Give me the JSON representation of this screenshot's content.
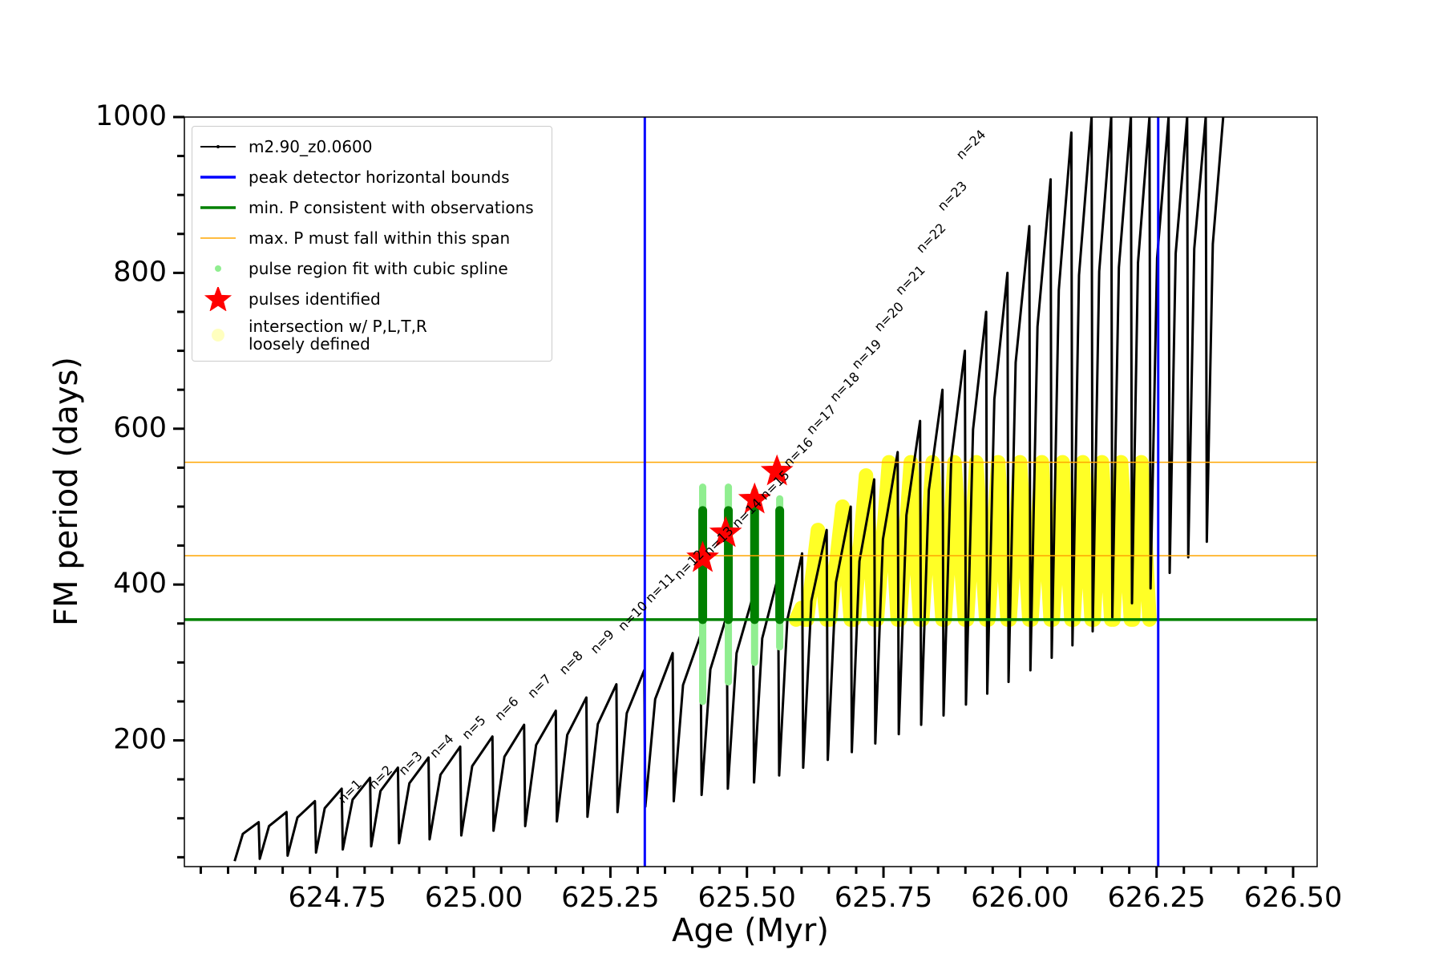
{
  "chart_data": {
    "type": "line",
    "xlabel": "Age (Myr)",
    "ylabel": "FM period (days)",
    "xlim": [
      624.47,
      626.544
    ],
    "ylim": [
      38,
      1000
    ],
    "xticks": [
      {
        "value": 624.75,
        "label": "624.75"
      },
      {
        "value": 625.0,
        "label": "625.00"
      },
      {
        "value": 625.25,
        "label": "625.25"
      },
      {
        "value": 625.5,
        "label": "625.50"
      },
      {
        "value": 625.75,
        "label": "625.75"
      },
      {
        "value": 626.0,
        "label": "626.00"
      },
      {
        "value": 626.25,
        "label": "626.25"
      },
      {
        "value": 626.5,
        "label": "626.50"
      }
    ],
    "xminorticks": [
      624.5,
      624.55,
      624.6,
      624.65,
      624.7,
      624.8,
      624.85,
      624.9,
      624.95,
      625.05,
      625.1,
      625.15,
      625.2,
      625.3,
      625.35,
      625.4,
      625.45,
      625.55,
      625.6,
      625.65,
      625.7,
      625.8,
      625.85,
      625.9,
      625.95,
      626.05,
      626.1,
      626.15,
      626.2,
      626.3,
      626.35,
      626.4,
      626.45
    ],
    "yticks": [
      200,
      400,
      600,
      800,
      1000
    ],
    "yminorticks": [
      50,
      100,
      150,
      250,
      300,
      350,
      450,
      500,
      550,
      650,
      700,
      750,
      850,
      900,
      950
    ],
    "series": [
      {
        "name": "m2.90_z0.0600",
        "color": "#000000",
        "x": [
          624.562,
          624.577,
          624.606,
          624.608,
          624.625,
          624.657,
          624.659,
          624.677,
          624.709,
          624.711,
          624.727,
          624.758,
          624.76,
          624.778,
          624.81,
          624.812,
          624.829,
          624.861,
          624.863,
          624.882,
          624.917,
          624.919,
          624.939,
          624.975,
          624.977,
          624.997,
          625.034,
          625.036,
          625.056,
          625.092,
          625.094,
          625.114,
          625.15,
          625.152,
          625.171,
          625.206,
          625.208,
          625.227,
          625.261,
          625.263,
          625.28,
          625.312,
          625.314,
          625.332,
          625.364,
          625.366,
          625.383,
          625.415,
          625.417,
          625.433,
          625.463,
          625.465,
          625.481,
          625.511,
          625.513,
          625.528,
          625.557,
          625.559,
          625.574,
          625.601,
          625.603,
          625.618,
          625.646,
          625.648,
          625.663,
          625.69,
          625.692,
          625.706,
          625.733,
          625.735,
          625.749,
          625.776,
          625.778,
          625.792,
          625.817,
          625.819,
          625.833,
          625.858,
          625.86,
          625.874,
          625.899,
          625.901,
          625.914,
          625.938,
          625.94,
          625.953,
          625.977,
          625.979,
          625.992,
          626.017,
          626.019,
          626.032,
          626.056,
          626.058,
          626.071,
          626.094,
          626.096,
          626.108,
          626.131,
          626.133,
          626.145,
          626.167,
          626.169,
          626.181,
          626.203,
          626.205,
          626.216,
          626.237,
          626.239,
          626.251,
          626.272,
          626.274,
          626.285,
          626.306,
          626.308,
          626.319,
          626.34,
          626.342,
          626.353,
          626.372
        ],
        "values": [
          45,
          80,
          95,
          48,
          90,
          108,
          52,
          101,
          122,
          56,
          113,
          138,
          60,
          124,
          152,
          64,
          135,
          165,
          68,
          145,
          178,
          73,
          156,
          192,
          78,
          167,
          205,
          84,
          179,
          220,
          90,
          194,
          238,
          96,
          207,
          255,
          102,
          221,
          272,
          108,
          235,
          290,
          115,
          253,
          312,
          122,
          271,
          335,
          130,
          291,
          360,
          138,
          312,
          385,
          146,
          331,
          410,
          155,
          355,
          440,
          165,
          379,
          470,
          175,
          403,
          500,
          185,
          430,
          535,
          196,
          458,
          570,
          208,
          489,
          610,
          220,
          521,
          650,
          232,
          560,
          700,
          246,
          599,
          750,
          260,
          638,
          800,
          275,
          685,
          860,
          290,
          731,
          920,
          306,
          778,
          980,
          322,
          797,
          1000,
          340,
          802,
          1000,
          358,
          807,
          1000,
          376,
          813,
          1000,
          395,
          819,
          1000,
          415,
          825,
          1000,
          435,
          831,
          1000,
          455,
          837,
          1000
        ]
      }
    ],
    "bounds": {
      "name": "peak detector horizontal bounds",
      "color": "#0000ff",
      "x": [
        625.313,
        626.253
      ]
    },
    "min_period": {
      "name": "min. P consistent with observations",
      "color": "#008000",
      "y": [
        355
      ]
    },
    "max_period": {
      "name": "max. P must fall within this span",
      "color": "#ffa500",
      "y": [
        437,
        557
      ]
    },
    "spline_fit": {
      "name": "pulse region fit with cubic spline",
      "color": "#90ee90",
      "x": [
        625.419,
        625.466,
        625.514,
        625.56
      ],
      "low": [
        250,
        275,
        300,
        320
      ],
      "high": [
        525,
        525,
        520,
        510
      ]
    },
    "pulse_ranges": {
      "color": "#008000",
      "x": [
        625.419,
        625.466,
        625.514,
        625.56
      ],
      "low": [
        355,
        355,
        355,
        355
      ],
      "high": [
        495,
        495,
        495,
        495
      ]
    },
    "pulses": {
      "name": "pulses identified",
      "color": "#ff0000",
      "x": [
        625.419,
        625.461,
        625.514,
        625.555
      ],
      "values": [
        434,
        466,
        509,
        545
      ]
    },
    "intersection": {
      "name": "intersection w/ P,L,T,R\nloosely defined",
      "color": "#ffff00",
      "x": [
        625.59,
        625.6,
        625.606,
        null,
        625.61,
        625.63,
        625.646,
        null,
        625.652,
        625.675,
        625.69,
        null,
        625.696,
        625.718,
        625.733,
        null,
        625.738,
        625.76,
        625.776,
        null,
        625.78,
        625.8,
        625.817,
        null,
        625.821,
        625.84,
        625.858,
        null,
        625.862,
        625.88,
        625.899,
        null,
        625.903,
        625.92,
        625.938,
        null,
        625.942,
        625.96,
        625.977,
        null,
        625.981,
        626.0,
        626.017,
        null,
        626.021,
        626.04,
        626.056,
        null,
        626.06,
        626.078,
        626.094,
        null,
        626.098,
        626.115,
        626.131,
        null,
        626.135,
        626.15,
        626.167,
        null,
        626.171,
        626.185,
        626.203,
        null,
        626.207,
        626.222,
        626.237
      ],
      "values": [
        355,
        370,
        355,
        null,
        355,
        470,
        355,
        null,
        355,
        500,
        355,
        null,
        355,
        540,
        355,
        null,
        355,
        557,
        355,
        null,
        355,
        557,
        355,
        null,
        355,
        557,
        355,
        null,
        355,
        557,
        355,
        null,
        355,
        557,
        355,
        null,
        355,
        557,
        355,
        null,
        355,
        557,
        355,
        null,
        355,
        557,
        355,
        null,
        355,
        557,
        355,
        null,
        355,
        557,
        355,
        null,
        355,
        557,
        355,
        null,
        355,
        557,
        355,
        null,
        355,
        557,
        355
      ]
    },
    "annotations": [
      {
        "text": "n=1",
        "x": 624.774,
        "y": 134
      },
      {
        "text": "n=2",
        "x": 624.83,
        "y": 152
      },
      {
        "text": "n=3",
        "x": 624.885,
        "y": 170
      },
      {
        "text": "n=4",
        "x": 624.942,
        "y": 192
      },
      {
        "text": "n=5",
        "x": 625.001,
        "y": 216
      },
      {
        "text": "n=6",
        "x": 625.061,
        "y": 240
      },
      {
        "text": "n=7",
        "x": 625.121,
        "y": 269
      },
      {
        "text": "n=8",
        "x": 625.179,
        "y": 299
      },
      {
        "text": "n=9",
        "x": 625.236,
        "y": 326
      },
      {
        "text": "n=10",
        "x": 625.292,
        "y": 359
      },
      {
        "text": "n=11",
        "x": 625.342,
        "y": 395
      },
      {
        "text": "n=12",
        "x": 625.395,
        "y": 425
      },
      {
        "text": "n=13",
        "x": 625.449,
        "y": 455
      },
      {
        "text": "n=14",
        "x": 625.501,
        "y": 491
      },
      {
        "text": "n=15",
        "x": 625.552,
        "y": 527
      },
      {
        "text": "n=16",
        "x": 625.595,
        "y": 569
      },
      {
        "text": "n=17",
        "x": 625.637,
        "y": 611
      },
      {
        "text": "n=18",
        "x": 625.68,
        "y": 653
      },
      {
        "text": "n=19",
        "x": 625.72,
        "y": 695
      },
      {
        "text": "n=20",
        "x": 625.761,
        "y": 743
      },
      {
        "text": "n=21",
        "x": 625.8,
        "y": 790
      },
      {
        "text": "n=22",
        "x": 625.838,
        "y": 844
      },
      {
        "text": "n=23",
        "x": 625.877,
        "y": 898
      },
      {
        "text": "n=24",
        "x": 625.911,
        "y": 964
      }
    ]
  }
}
